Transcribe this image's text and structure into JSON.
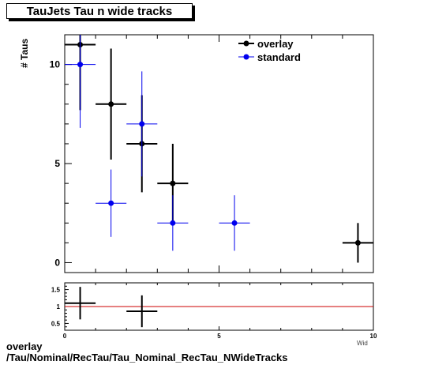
{
  "title": "TauJets Tau n wide tracks",
  "ylabel": "# Taus",
  "xlabel": "Wid",
  "footer": {
    "line1": "overlay",
    "line2": "/Tau/Nominal/RecTau/Tau_Nominal_RecTau_NWideTracks"
  },
  "colors": {
    "overlay": "#000000",
    "standard": "#0000ee",
    "ratio_line": "#cc0000"
  },
  "chart_data": [
    {
      "type": "scatter",
      "title": "TauJets Tau n wide tracks",
      "xlabel": "",
      "ylabel": "# Taus",
      "xlim": [
        0,
        10
      ],
      "ylim": [
        -0.5,
        11.5
      ],
      "xticks": [
        0,
        5,
        10
      ],
      "yticks": [
        0,
        5,
        10
      ],
      "legend": "top-right",
      "series": [
        {
          "name": "overlay",
          "color": "#000000",
          "points": [
            {
              "x": 0.5,
              "y": 11,
              "yerr": 3.3
            },
            {
              "x": 1.5,
              "y": 8,
              "yerr": 2.8
            },
            {
              "x": 2.5,
              "y": 6,
              "yerr": 2.45
            },
            {
              "x": 3.5,
              "y": 4,
              "yerr": 2.0
            },
            {
              "x": 9.5,
              "y": 1,
              "yerr": 1.0
            }
          ]
        },
        {
          "name": "standard",
          "color": "#0000ee",
          "points": [
            {
              "x": 0.5,
              "y": 10,
              "yerr": 3.2
            },
            {
              "x": 1.5,
              "y": 3,
              "yerr": 1.7
            },
            {
              "x": 2.5,
              "y": 7,
              "yerr": 2.65
            },
            {
              "x": 3.5,
              "y": 2,
              "yerr": 1.4
            },
            {
              "x": 5.5,
              "y": 2,
              "yerr": 1.4
            }
          ]
        }
      ]
    },
    {
      "type": "scatter",
      "title": "",
      "xlabel": "Wid",
      "ylabel": "",
      "xlim": [
        0,
        10
      ],
      "ylim": [
        0.3,
        1.7
      ],
      "xticks": [
        0,
        5,
        10
      ],
      "yticks": [
        0.5,
        1,
        1.5
      ],
      "reference_line": 1,
      "series": [
        {
          "name": "ratio",
          "color": "#000000",
          "points": [
            {
              "x": 0.5,
              "y": 1.1,
              "yerr": 0.48
            },
            {
              "x": 2.5,
              "y": 0.86,
              "yerr": 0.47
            }
          ]
        }
      ]
    }
  ]
}
